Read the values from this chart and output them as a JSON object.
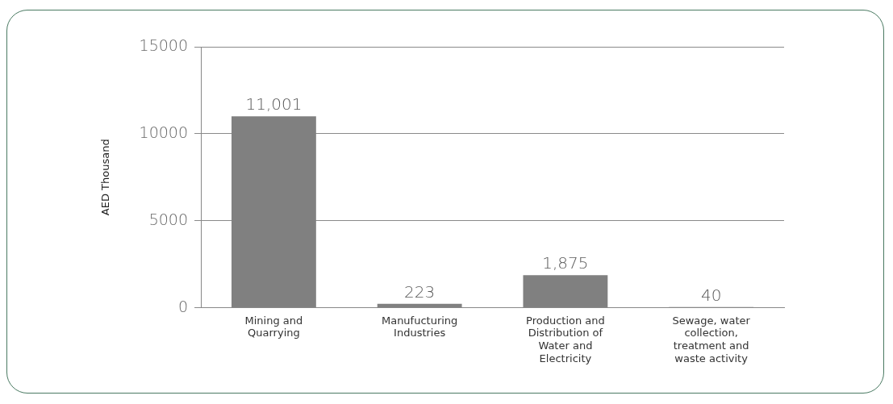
{
  "chart_data": {
    "type": "bar",
    "categories": [
      "Mining and Quarrying",
      "Manufucturing Industries",
      "Production and Distribution of Water and Electricity",
      "Sewage, water collection, treatment and waste activity"
    ],
    "values": [
      11001,
      223,
      1875,
      40
    ],
    "value_labels": [
      "11,001",
      "223",
      "1,875",
      "40"
    ],
    "color": "#808080",
    "ylabel": "AED Thousand",
    "ylim": [
      0,
      15000
    ],
    "yticks": [
      0,
      5000,
      10000,
      15000
    ],
    "grid": "y",
    "legend": false
  }
}
